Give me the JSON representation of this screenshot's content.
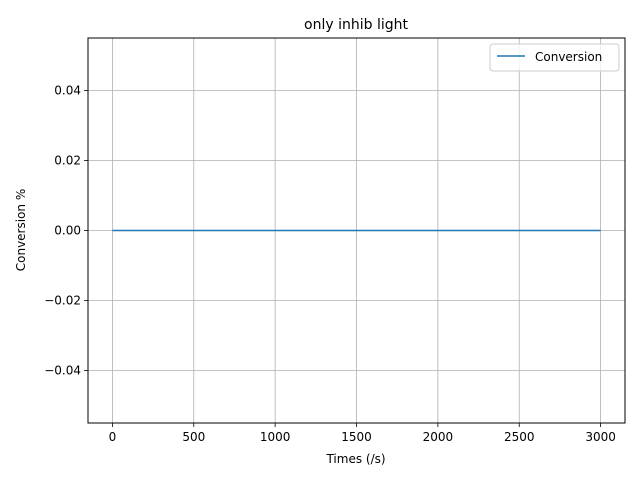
{
  "chart_data": {
    "type": "line",
    "title": "only inhib light",
    "xlabel": "Times (/s)",
    "ylabel": "Conversion %",
    "xlim": [
      -150,
      3150
    ],
    "ylim": [
      -0.055,
      0.055
    ],
    "xticks": [
      0,
      500,
      1000,
      1500,
      2000,
      2500,
      3000
    ],
    "yticks": [
      -0.04,
      -0.02,
      0.0,
      0.02,
      0.04
    ],
    "ytick_labels": [
      "−0.04",
      "−0.02",
      "0.00",
      "0.02",
      "0.04"
    ],
    "grid": true,
    "legend_position": "top-right",
    "series": [
      {
        "name": "Conversion",
        "color": "#1f77b4",
        "x": [
          0,
          3000
        ],
        "y": [
          0,
          0
        ]
      }
    ]
  }
}
